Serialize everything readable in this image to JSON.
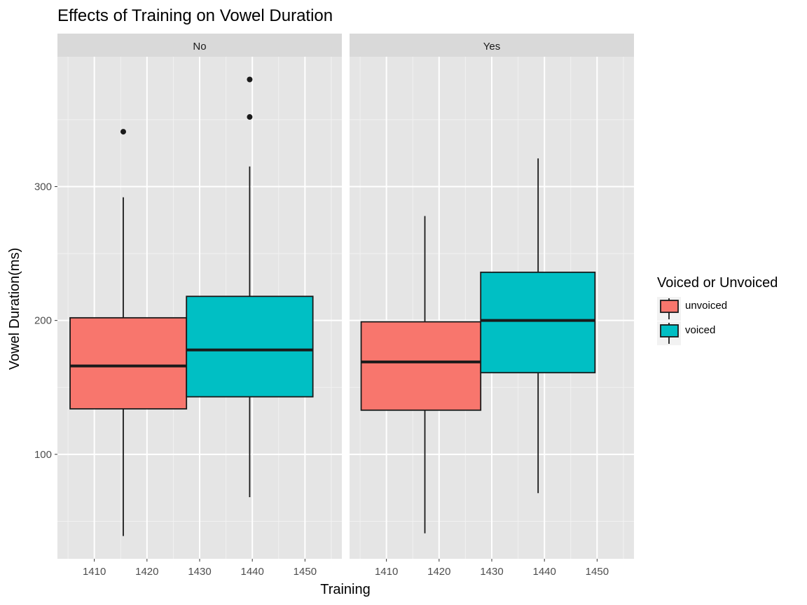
{
  "chart_data": {
    "type": "boxplot",
    "title": "Effects of Training on Vowel Duration",
    "xlabel": "Training",
    "ylabel": "Vowel Duration(ms)",
    "facets": [
      "No",
      "Yes"
    ],
    "x_ticks": [
      1410,
      1420,
      1430,
      1440,
      1450
    ],
    "x_range": [
      1403,
      1457
    ],
    "y_ticks": [
      100,
      200,
      300
    ],
    "y_range": [
      22,
      397
    ],
    "legend": {
      "title": "Voiced or Unvoiced",
      "position": "right",
      "entries": [
        {
          "label": "unvoiced",
          "color": "#F8766D"
        },
        {
          "label": "voiced",
          "color": "#00BFC4"
        }
      ]
    },
    "colors": {
      "unvoiced": "#F8766D",
      "voiced": "#00BFC4"
    },
    "boxes": [
      {
        "facet": "No",
        "group": "unvoiced",
        "x_left": 1405.4,
        "x_right": 1427.5,
        "x_center": 1415.5,
        "whisker_low": 39,
        "q1": 134,
        "median": 166,
        "q3": 202,
        "whisker_high": 292,
        "outliers": [
          341
        ]
      },
      {
        "facet": "No",
        "group": "voiced",
        "x_left": 1427.5,
        "x_right": 1451.5,
        "x_center": 1439.5,
        "whisker_low": 68,
        "q1": 143,
        "median": 178,
        "q3": 218,
        "whisker_high": 315,
        "outliers": [
          352,
          380
        ]
      },
      {
        "facet": "Yes",
        "group": "unvoiced",
        "x_left": 1405.2,
        "x_right": 1427.9,
        "x_center": 1417.3,
        "whisker_low": 41,
        "q1": 133,
        "median": 169,
        "q3": 199,
        "whisker_high": 278,
        "outliers": []
      },
      {
        "facet": "Yes",
        "group": "voiced",
        "x_left": 1427.9,
        "x_right": 1449.6,
        "x_center": 1438.8,
        "whisker_low": 71,
        "q1": 161,
        "median": 200,
        "q3": 236,
        "whisker_high": 321,
        "outliers": []
      }
    ]
  }
}
